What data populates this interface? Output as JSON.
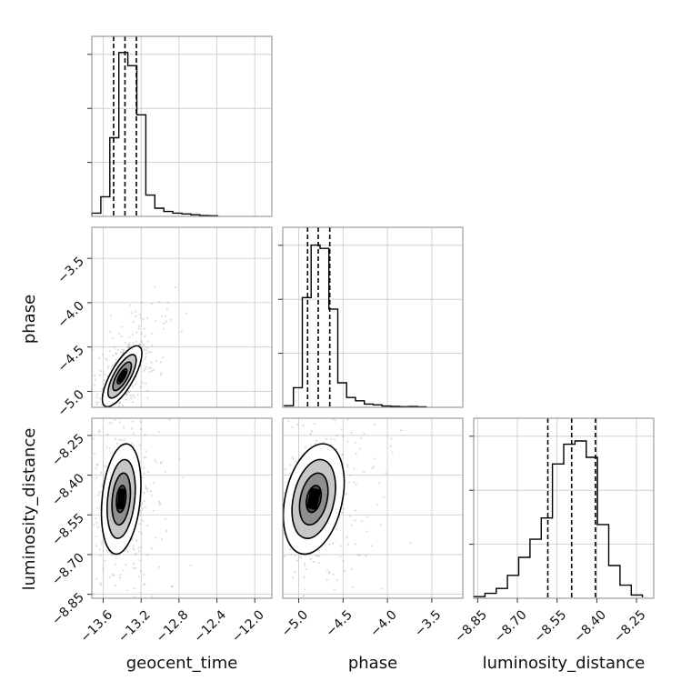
{
  "chart_data": {
    "type": "corner",
    "parameters": [
      "geocent_time",
      "phase",
      "luminosity_distance"
    ],
    "labels": {
      "x": [
        "geocent_time",
        "phase",
        "luminosity_distance"
      ],
      "y": [
        "phase",
        "luminosity_distance"
      ]
    },
    "ranges": {
      "geocent_time": [
        -13.72,
        -11.82
      ],
      "phase": [
        -5.18,
        -3.15
      ],
      "luminosity_distance": [
        -8.865,
        -8.185
      ]
    },
    "ticks": {
      "geocent_time": {
        "values": [
          -13.6,
          -13.2,
          -12.8,
          -12.4,
          -12.0
        ],
        "labels": [
          "−13.6",
          "−13.2",
          "−12.8",
          "−12.4",
          "−12.0"
        ]
      },
      "phase": {
        "values": [
          -5.0,
          -4.5,
          -4.0,
          -3.5
        ],
        "labels": [
          "−5.0",
          "−4.5",
          "−4.0",
          "−3.5"
        ]
      },
      "luminosity_distance": {
        "values": [
          -8.85,
          -8.7,
          -8.55,
          -8.4,
          -8.25
        ],
        "labels": [
          "−8.85",
          "−8.70",
          "−8.55",
          "−8.40",
          "−8.25"
        ]
      }
    },
    "quantiles": {
      "geocent_time": [
        -13.49,
        -13.37,
        -13.25
      ],
      "phase": [
        -4.9,
        -4.78,
        -4.65
      ],
      "luminosity_distance": [
        -8.585,
        -8.495,
        -8.405
      ]
    },
    "histograms": {
      "geocent_time": {
        "edges": [
          -13.72,
          -13.625,
          -13.53,
          -13.435,
          -13.34,
          -13.245,
          -13.15,
          -13.055,
          -12.96,
          -12.865,
          -12.77,
          -12.675,
          -12.58,
          -12.485,
          -12.39
        ],
        "counts": [
          0.02,
          0.12,
          0.48,
          1.0,
          0.92,
          0.62,
          0.13,
          0.05,
          0.03,
          0.02,
          0.015,
          0.01,
          0.005,
          0.004
        ]
      },
      "phase": {
        "edges": [
          -5.16,
          -5.06,
          -4.96,
          -4.86,
          -4.76,
          -4.66,
          -4.56,
          -4.46,
          -4.36,
          -4.26,
          -4.16,
          -4.06,
          -3.96,
          -3.86,
          -3.76,
          -3.66,
          -3.56
        ],
        "counts": [
          0.01,
          0.12,
          0.67,
          0.99,
          0.97,
          0.6,
          0.15,
          0.06,
          0.04,
          0.02,
          0.015,
          0.008,
          0.006,
          0.004,
          0.005,
          0.003
        ]
      },
      "luminosity_distance": {
        "edges": [
          -8.865,
          -8.8225,
          -8.78,
          -8.7375,
          -8.695,
          -8.6525,
          -8.61,
          -8.5675,
          -8.525,
          -8.4825,
          -8.44,
          -8.3975,
          -8.355,
          -8.3125,
          -8.27,
          -8.2275
        ],
        "counts": [
          0.01,
          0.03,
          0.06,
          0.14,
          0.25,
          0.36,
          0.49,
          0.82,
          0.94,
          0.96,
          0.86,
          0.45,
          0.2,
          0.08,
          0.02
        ]
      }
    },
    "correlations": {
      "geocent_time|phase": {
        "mean": [
          -13.4,
          -4.83
        ],
        "sd": [
          0.085,
          0.14
        ],
        "rho": 0.75
      },
      "geocent_time|luminosity_distance": {
        "mean": [
          -13.41,
          -8.49
        ],
        "sd": [
          0.085,
          0.085
        ],
        "rho": 0.25
      },
      "phase|luminosity_distance": {
        "mean": [
          -4.83,
          -8.49
        ],
        "sd": [
          0.14,
          0.085
        ],
        "rho": 0.3
      }
    },
    "grid": true,
    "colors": {
      "samples": "#8a8a8a",
      "contours": "#000000",
      "frame": "#888888",
      "grid": "#c8c8c8"
    }
  }
}
